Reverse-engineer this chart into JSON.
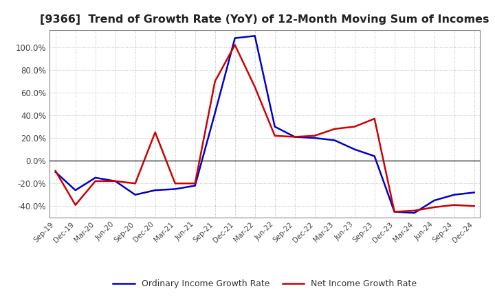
{
  "title": "[9366]  Trend of Growth Rate (YoY) of 12-Month Moving Sum of Incomes",
  "title_fontsize": 11.5,
  "ylim": [
    -0.5,
    1.15
  ],
  "yticks": [
    -0.4,
    -0.2,
    0.0,
    0.2,
    0.4,
    0.6,
    0.8,
    1.0
  ],
  "background_color": "#ffffff",
  "grid_color": "#aaaaaa",
  "ordinary_color": "#0000cc",
  "net_color": "#cc0000",
  "legend_ordinary": "Ordinary Income Growth Rate",
  "legend_net": "Net Income Growth Rate",
  "dates": [
    "Sep-19",
    "Dec-19",
    "Mar-20",
    "Jun-20",
    "Sep-20",
    "Dec-20",
    "Mar-21",
    "Jun-21",
    "Sep-21",
    "Dec-21",
    "Mar-22",
    "Jun-22",
    "Sep-22",
    "Dec-22",
    "Mar-23",
    "Jun-23",
    "Sep-23",
    "Dec-23",
    "Mar-24",
    "Jun-24",
    "Sep-24",
    "Dec-24"
  ],
  "ordinary_values": [
    -0.1,
    -0.26,
    -0.15,
    -0.18,
    -0.3,
    -0.26,
    -0.25,
    -0.22,
    0.42,
    1.08,
    1.1,
    0.3,
    0.21,
    0.2,
    0.18,
    0.1,
    0.04,
    -0.45,
    -0.46,
    -0.35,
    -0.3,
    -0.28
  ],
  "net_values": [
    -0.09,
    -0.39,
    -0.18,
    -0.18,
    -0.2,
    0.25,
    -0.2,
    -0.2,
    0.7,
    1.02,
    0.65,
    0.22,
    0.21,
    0.22,
    0.28,
    0.3,
    0.37,
    -0.45,
    -0.44,
    -0.41,
    -0.39,
    -0.4
  ]
}
